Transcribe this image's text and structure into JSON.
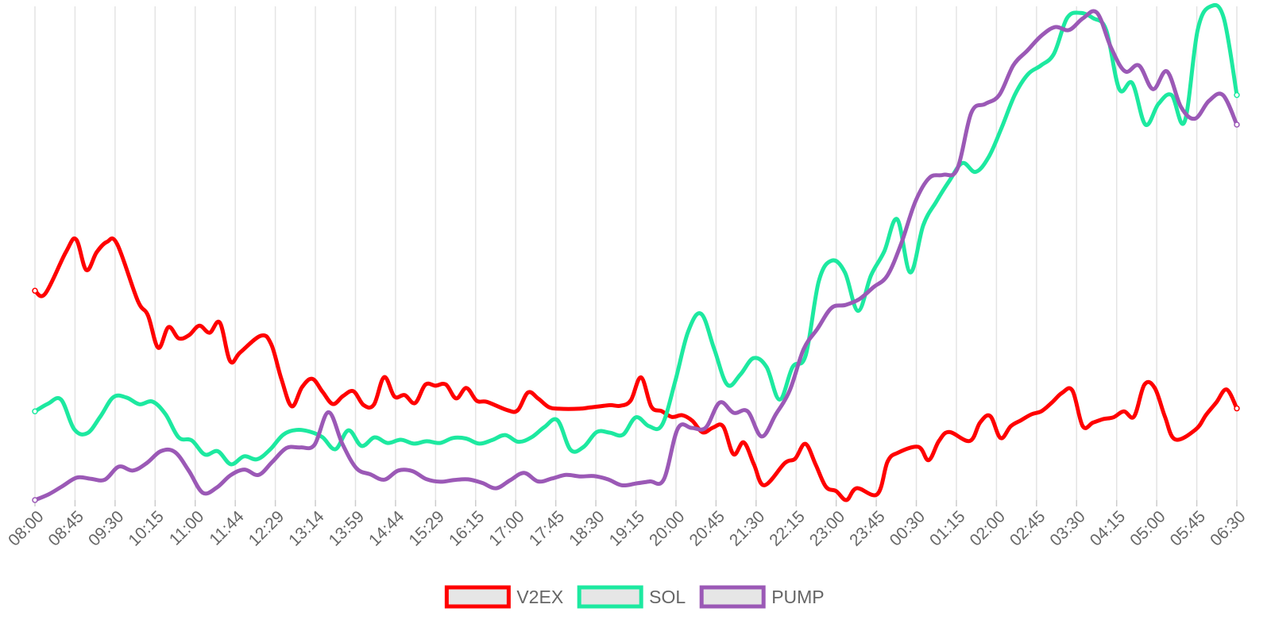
{
  "chart_data": {
    "type": "line",
    "title": "",
    "xlabel": "",
    "ylabel": "",
    "grid": "vertical",
    "legend_position": "bottom",
    "x_tick_labels": [
      "08:00",
      "08:45",
      "09:30",
      "10:15",
      "11:00",
      "11:44",
      "12:29",
      "13:14",
      "13:59",
      "14:44",
      "15:29",
      "16:15",
      "17:00",
      "17:45",
      "18:30",
      "19:15",
      "20:00",
      "20:45",
      "21:30",
      "22:15",
      "23:00",
      "23:45",
      "00:30",
      "01:15",
      "02:00",
      "02:45",
      "03:30",
      "04:15",
      "05:00",
      "05:45",
      "06:30"
    ],
    "series": [
      {
        "name": "V2EX",
        "color": "#ff0000",
        "values": [
          818,
          808,
          948,
          992,
          888,
          948,
          983,
          976,
          785,
          735,
          625,
          695,
          657,
          668,
          700,
          676,
          710,
          580,
          610,
          666,
          637,
          518,
          427,
          492,
          520,
          476,
          435,
          462,
          478,
          431,
          433,
          526,
          460,
          465,
          438,
          500,
          497,
          501,
          454,
          489,
          446,
          442,
          414,
          414,
          474,
          453,
          425,
          419,
          419,
          423,
          427,
          431,
          429,
          447,
          525,
          426,
          411,
          391,
          397,
          378,
          339,
          355,
          359,
          265,
          305,
          230,
          160,
          235,
          250,
          300,
          230,
          155,
          140,
          110,
          150,
          130,
          240,
          270,
          290,
          245,
          310,
          340,
          310,
          372,
          394,
          320,
          360,
          380,
          400,
          411,
          440,
          473,
          480,
          360,
          372,
          384,
          390,
          410,
          393,
          500,
          490,
          392,
          315,
          349,
          398,
          440,
          484,
          420
        ],
        "x_positions": [
          0,
          1,
          3,
          4,
          5,
          6,
          7,
          8,
          10,
          11,
          12,
          13,
          14,
          15,
          16,
          17,
          18,
          19,
          20,
          22,
          23,
          24,
          25,
          26,
          27,
          28,
          29,
          30,
          31,
          32,
          33,
          34,
          35,
          36,
          37,
          38,
          39,
          40,
          41,
          42,
          43,
          44,
          46,
          47,
          48,
          49,
          50,
          51,
          53,
          54,
          55,
          56,
          57,
          58,
          59,
          60,
          61,
          62,
          63,
          64,
          65,
          66,
          67,
          68,
          69,
          70,
          71,
          73,
          74,
          75,
          76,
          77,
          78,
          79,
          80,
          82,
          83,
          84,
          86,
          87,
          88,
          89,
          91,
          92,
          93,
          94,
          95,
          96,
          97,
          98,
          99,
          100,
          101,
          102,
          103,
          104,
          105,
          106,
          107,
          108,
          109,
          110,
          111,
          113,
          114,
          115,
          116,
          117
        ]
      },
      {
        "name": "SOL",
        "color": "#1de9a0",
        "values": [
          410,
          436,
          450,
          350,
          336,
          392,
          458,
          457,
          434,
          443,
          400,
          322,
          312,
          264,
          275,
          231,
          258,
          248,
          281,
          331,
          347,
          342,
          323,
          282,
          346,
          293,
          322,
          303,
          314,
          301,
          309,
          303,
          320,
          318,
          301,
          313,
          330,
          307,
          322,
          357,
          380,
          280,
          290,
          340,
          338,
          331,
          390,
          360,
          364,
          510,
          680,
          740,
          620,
          500,
          535,
          590,
          560,
          450,
          560,
          600,
          850,
          920,
          880,
          750,
          870,
          950,
          1060,
          880,
          1040,
          1120,
          1190,
          1250,
          1220,
          1270,
          1370,
          1480,
          1550,
          1580,
          1620,
          1740,
          1758,
          1740,
          1700,
          1500,
          1520,
          1380,
          1450,
          1480,
          1390,
          1700,
          1780,
          1740,
          1480
        ],
        "x_positions": [
          0,
          1,
          2,
          3,
          4,
          5,
          6,
          7,
          8,
          9,
          10,
          11,
          12,
          13,
          14,
          15,
          16,
          17,
          18,
          19,
          20,
          21,
          22,
          23,
          24,
          25,
          26,
          27,
          28,
          29,
          30,
          31,
          32,
          33,
          34,
          35,
          36,
          37,
          38,
          39,
          40,
          41,
          42,
          43,
          44,
          45,
          46,
          47,
          48,
          49,
          50,
          51,
          52,
          53,
          54,
          55,
          56,
          57,
          58,
          59,
          60,
          61,
          62,
          63,
          64,
          65,
          66,
          67,
          68,
          69,
          70,
          71,
          72,
          73,
          74,
          75,
          76,
          77,
          78,
          79,
          80,
          81,
          82,
          83,
          84,
          85,
          86,
          87,
          88,
          89,
          90,
          91,
          92
        ]
      },
      {
        "name": "PUMP",
        "color": "#9b59b6",
        "values": [
          110,
          130,
          158,
          186,
          182,
          179,
          223,
          210,
          235,
          275,
          273,
          210,
          135,
          152,
          194,
          213,
          195,
          240,
          286,
          288,
          297,
          407,
          300,
          218,
          197,
          179,
          210,
          208,
          181,
          172,
          178,
          180,
          168,
          150,
          177,
          202,
          173,
          183,
          195,
          190,
          191,
          180,
          160,
          166,
          173,
          180,
          352,
          354,
          355,
          440,
          405,
          410,
          325,
          399,
          480,
          620,
          690,
          760,
          770,
          790,
          830,
          870,
          980,
          1120,
          1200,
          1210,
          1230,
          1420,
          1450,
          1480,
          1580,
          1630,
          1680,
          1710,
          1700,
          1740,
          1758,
          1640,
          1560,
          1580,
          1500,
          1560,
          1440,
          1400,
          1460,
          1480,
          1380
        ],
        "x_positions": [
          0,
          1,
          2,
          3,
          4,
          5,
          6,
          7,
          8,
          9,
          10,
          11,
          12,
          13,
          14,
          15,
          16,
          17,
          18,
          19,
          20,
          21,
          22,
          23,
          24,
          25,
          26,
          27,
          28,
          29,
          30,
          31,
          32,
          33,
          34,
          35,
          36,
          37,
          38,
          39,
          40,
          41,
          42,
          43,
          44,
          45,
          46,
          47,
          48,
          49,
          50,
          51,
          52,
          53,
          54,
          55,
          56,
          57,
          58,
          59,
          60,
          61,
          62,
          63,
          64,
          65,
          66,
          67,
          68,
          69,
          70,
          71,
          72,
          73,
          74,
          75,
          76,
          77,
          78,
          79,
          80,
          81,
          82,
          83,
          84,
          85,
          86
        ]
      }
    ]
  }
}
